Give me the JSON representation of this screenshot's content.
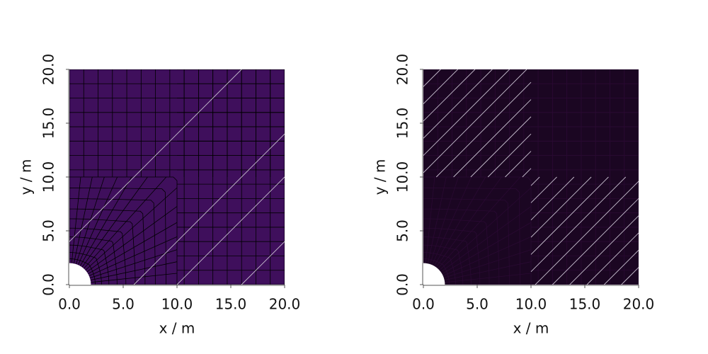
{
  "chart_data": [
    {
      "type": "mesh",
      "color": "#3f0f5c",
      "mesh_color": "#000000",
      "x_label": "x / m",
      "y_label": "y / m",
      "xlim": [
        0,
        20
      ],
      "ylim": [
        0,
        20
      ],
      "xticks": [
        {
          "value": 0,
          "label": "0.0"
        },
        {
          "value": 5,
          "label": "5.0"
        },
        {
          "value": 10,
          "label": "10.0"
        },
        {
          "value": 15,
          "label": "15.0"
        },
        {
          "value": 20,
          "label": "20.0"
        }
      ],
      "yticks": [
        {
          "value": 0,
          "label": "0.0"
        },
        {
          "value": 5,
          "label": "5.0"
        },
        {
          "value": 10,
          "label": "10.0"
        },
        {
          "value": 15,
          "label": "15.0"
        },
        {
          "value": 20,
          "label": "20.0"
        }
      ]
    },
    {
      "type": "mesh",
      "color": "#1b0622",
      "mesh_color": "#2a0a33",
      "x_label": "x / m",
      "y_label": "y / m",
      "xlim": [
        0,
        20
      ],
      "ylim": [
        0,
        20
      ],
      "xticks": [
        {
          "value": 0,
          "label": "0.0"
        },
        {
          "value": 5,
          "label": "5.0"
        },
        {
          "value": 10,
          "label": "10.0"
        },
        {
          "value": 15,
          "label": "15.0"
        },
        {
          "value": 20,
          "label": "20.0"
        }
      ],
      "yticks": [
        {
          "value": 0,
          "label": "0.0"
        },
        {
          "value": 5,
          "label": "5.0"
        },
        {
          "value": 10,
          "label": "10.0"
        },
        {
          "value": 15,
          "label": "15.0"
        },
        {
          "value": 20,
          "label": "20.0"
        }
      ]
    }
  ]
}
